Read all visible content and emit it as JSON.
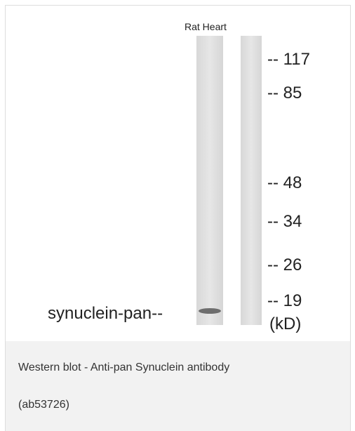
{
  "blot": {
    "lane_label": "Rat Heart",
    "markers": [
      "-- 117",
      "-- 85",
      "-- 48",
      "-- 34",
      "-- 26",
      "-- 19"
    ],
    "unit": "(kD)",
    "band_label": "synuclein-pan--"
  },
  "caption": {
    "lines": [
      "Western blot - Anti-pan Synuclein antibody",
      "(ab53726)"
    ]
  }
}
